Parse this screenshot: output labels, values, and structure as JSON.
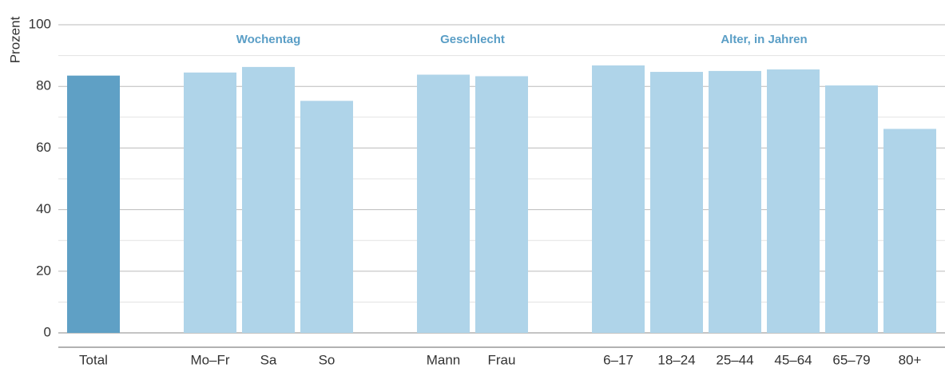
{
  "chart_data": {
    "type": "bar",
    "y_label": "Prozent",
    "categories": [
      "Total",
      null,
      "Mo–Fr",
      "Sa",
      "So",
      null,
      "Mann",
      "Frau",
      null,
      "6–17",
      "18–24",
      "25–44",
      "45–64",
      "65–79",
      "80+"
    ],
    "values": [
      83.5,
      null,
      84.5,
      86.3,
      75.3,
      null,
      83.8,
      83.3,
      null,
      86.8,
      84.7,
      85,
      85.5,
      80.3,
      66.2
    ],
    "colors": [
      "#5fa0c5",
      null,
      "#afd4e9",
      "#afd4e9",
      "#afd4e9",
      null,
      "#afd4e9",
      "#afd4e9",
      null,
      "#afd4e9",
      "#afd4e9",
      "#afd4e9",
      "#afd4e9",
      "#afd4e9",
      "#afd4e9"
    ],
    "groups": [
      "Wochentag",
      "Geschlecht",
      "Alter, in Jahren"
    ],
    "ylim": [
      0,
      100
    ],
    "yticks": [
      0,
      20,
      40,
      60,
      80,
      100
    ],
    "minor_yticks": [
      10,
      30,
      50,
      70,
      90
    ],
    "grid": true
  }
}
